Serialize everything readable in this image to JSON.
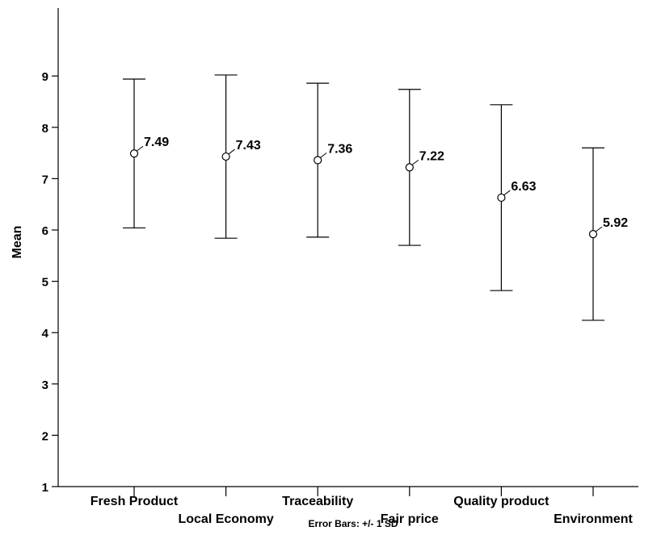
{
  "chart_data": {
    "type": "errorbar",
    "ylabel": "Mean",
    "footnote": "Error Bars: +/- 1 SD",
    "ylim": [
      1,
      9.9
    ],
    "yticks": [
      1,
      2,
      3,
      4,
      5,
      6,
      7,
      8,
      9
    ],
    "grid": false,
    "categories": [
      "Fresh Product",
      "Local Economy",
      "Traceability",
      "Fair price",
      "Quality product",
      "Environment"
    ],
    "means": [
      7.49,
      7.43,
      7.36,
      7.22,
      6.63,
      5.92
    ],
    "value_labels": [
      "7.49",
      "7.43",
      "7.36",
      "7.22",
      "6.63",
      "5.92"
    ],
    "upper": [
      8.94,
      9.02,
      8.86,
      8.74,
      8.44,
      7.6
    ],
    "lower": [
      6.04,
      5.84,
      5.86,
      5.7,
      4.82,
      4.24
    ]
  }
}
